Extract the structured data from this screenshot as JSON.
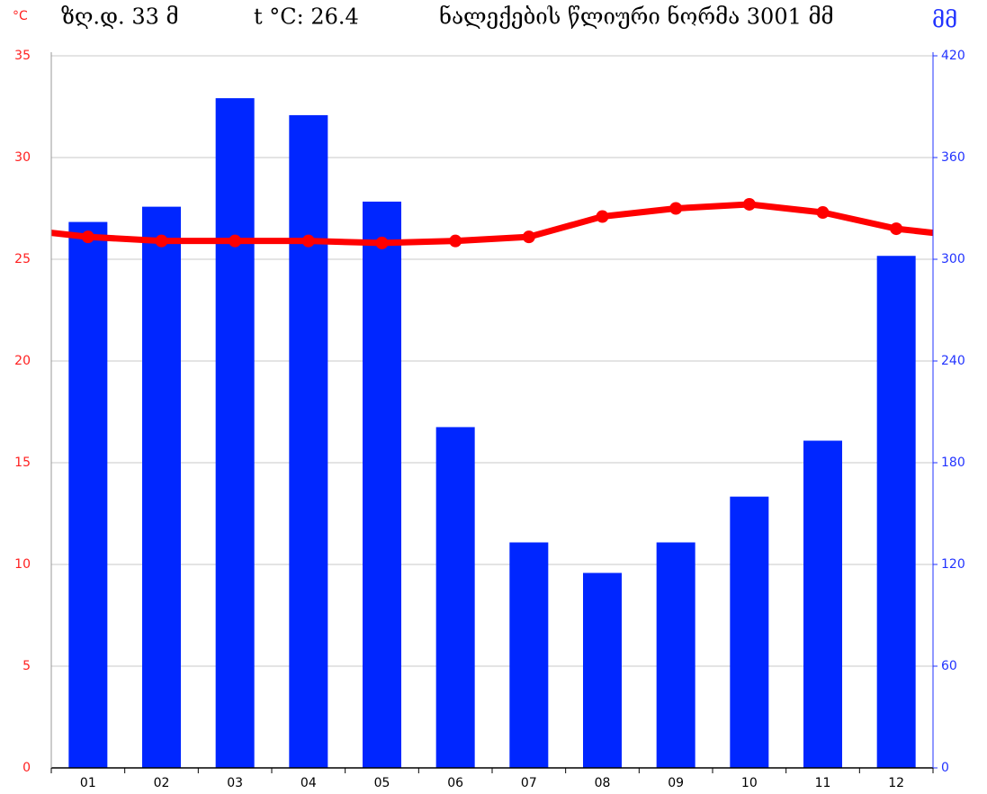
{
  "chart_data": {
    "type": "combo",
    "annotations": [
      "ზღ.დ. 33 მ",
      "t °C: 26.4",
      "ნალექების წლიური ნორმა 3001 მმ"
    ],
    "y_label": "°C",
    "y2_label": "მმ",
    "categories": [
      "01",
      "02",
      "03",
      "04",
      "05",
      "06",
      "07",
      "08",
      "09",
      "10",
      "11",
      "12"
    ],
    "series": [
      {
        "kind": "bar",
        "axis": "y2",
        "color": "#0026ff",
        "values": [
          322,
          331,
          395,
          385,
          334,
          201,
          133,
          115,
          133,
          160,
          193,
          302
        ]
      },
      {
        "kind": "line",
        "axis": "y",
        "color": "#ff0000",
        "values": [
          26.1,
          25.9,
          25.9,
          25.9,
          25.8,
          25.9,
          26.1,
          27.1,
          27.5,
          27.7,
          27.3,
          26.5
        ]
      }
    ],
    "ylim": [
      0,
      35
    ],
    "yticks": [
      0,
      5,
      10,
      15,
      20,
      25,
      30,
      35
    ],
    "ycolor": "#ff2020",
    "y2lim": [
      0,
      420
    ],
    "y2ticks": [
      0,
      60,
      120,
      180,
      240,
      300,
      360,
      420
    ],
    "y2color": "#2233ff",
    "grid": true
  }
}
